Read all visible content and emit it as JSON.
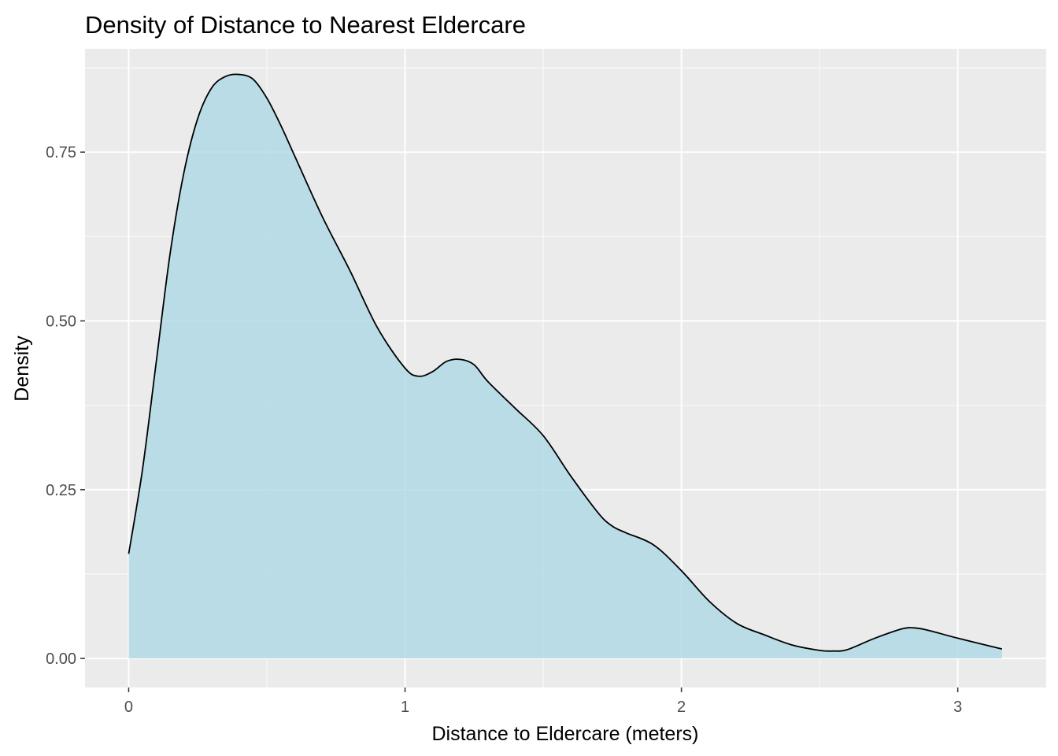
{
  "chart_data": {
    "type": "area",
    "title": "Density of Distance to Nearest Eldercare",
    "xlabel": "Distance to Eldercare (meters)",
    "ylabel": "Density",
    "xlim": [
      -0.158,
      3.32
    ],
    "ylim": [
      -0.043,
      0.903
    ],
    "x_ticks": [
      0,
      1,
      2,
      3
    ],
    "x_tick_labels": [
      "0",
      "1",
      "2",
      "3"
    ],
    "y_ticks": [
      0.0,
      0.25,
      0.5,
      0.75
    ],
    "y_tick_labels": [
      "0.00",
      "0.25",
      "0.50",
      "0.75"
    ],
    "grid": true,
    "legend": "none",
    "colors": {
      "fill": "#add8e6",
      "line": "#000000",
      "panel": "#ebebeb",
      "grid": "#ffffff"
    },
    "series": [
      {
        "x": [
          0.0,
          0.05,
          0.1,
          0.15,
          0.2,
          0.25,
          0.3,
          0.35,
          0.4,
          0.45,
          0.5,
          0.55,
          0.6,
          0.7,
          0.8,
          0.9,
          1.0,
          1.05,
          1.1,
          1.15,
          1.2,
          1.25,
          1.3,
          1.4,
          1.5,
          1.6,
          1.7,
          1.75,
          1.8,
          1.9,
          2.0,
          2.1,
          2.2,
          2.3,
          2.4,
          2.5,
          2.55,
          2.6,
          2.7,
          2.8,
          2.85,
          2.9,
          3.0,
          3.16
        ],
        "values": [
          0.155,
          0.28,
          0.44,
          0.6,
          0.72,
          0.8,
          0.845,
          0.862,
          0.865,
          0.858,
          0.83,
          0.79,
          0.745,
          0.655,
          0.575,
          0.49,
          0.43,
          0.418,
          0.425,
          0.44,
          0.443,
          0.435,
          0.41,
          0.37,
          0.33,
          0.27,
          0.215,
          0.196,
          0.186,
          0.168,
          0.13,
          0.085,
          0.052,
          0.035,
          0.02,
          0.012,
          0.011,
          0.013,
          0.03,
          0.044,
          0.045,
          0.041,
          0.03,
          0.014
        ]
      }
    ]
  }
}
